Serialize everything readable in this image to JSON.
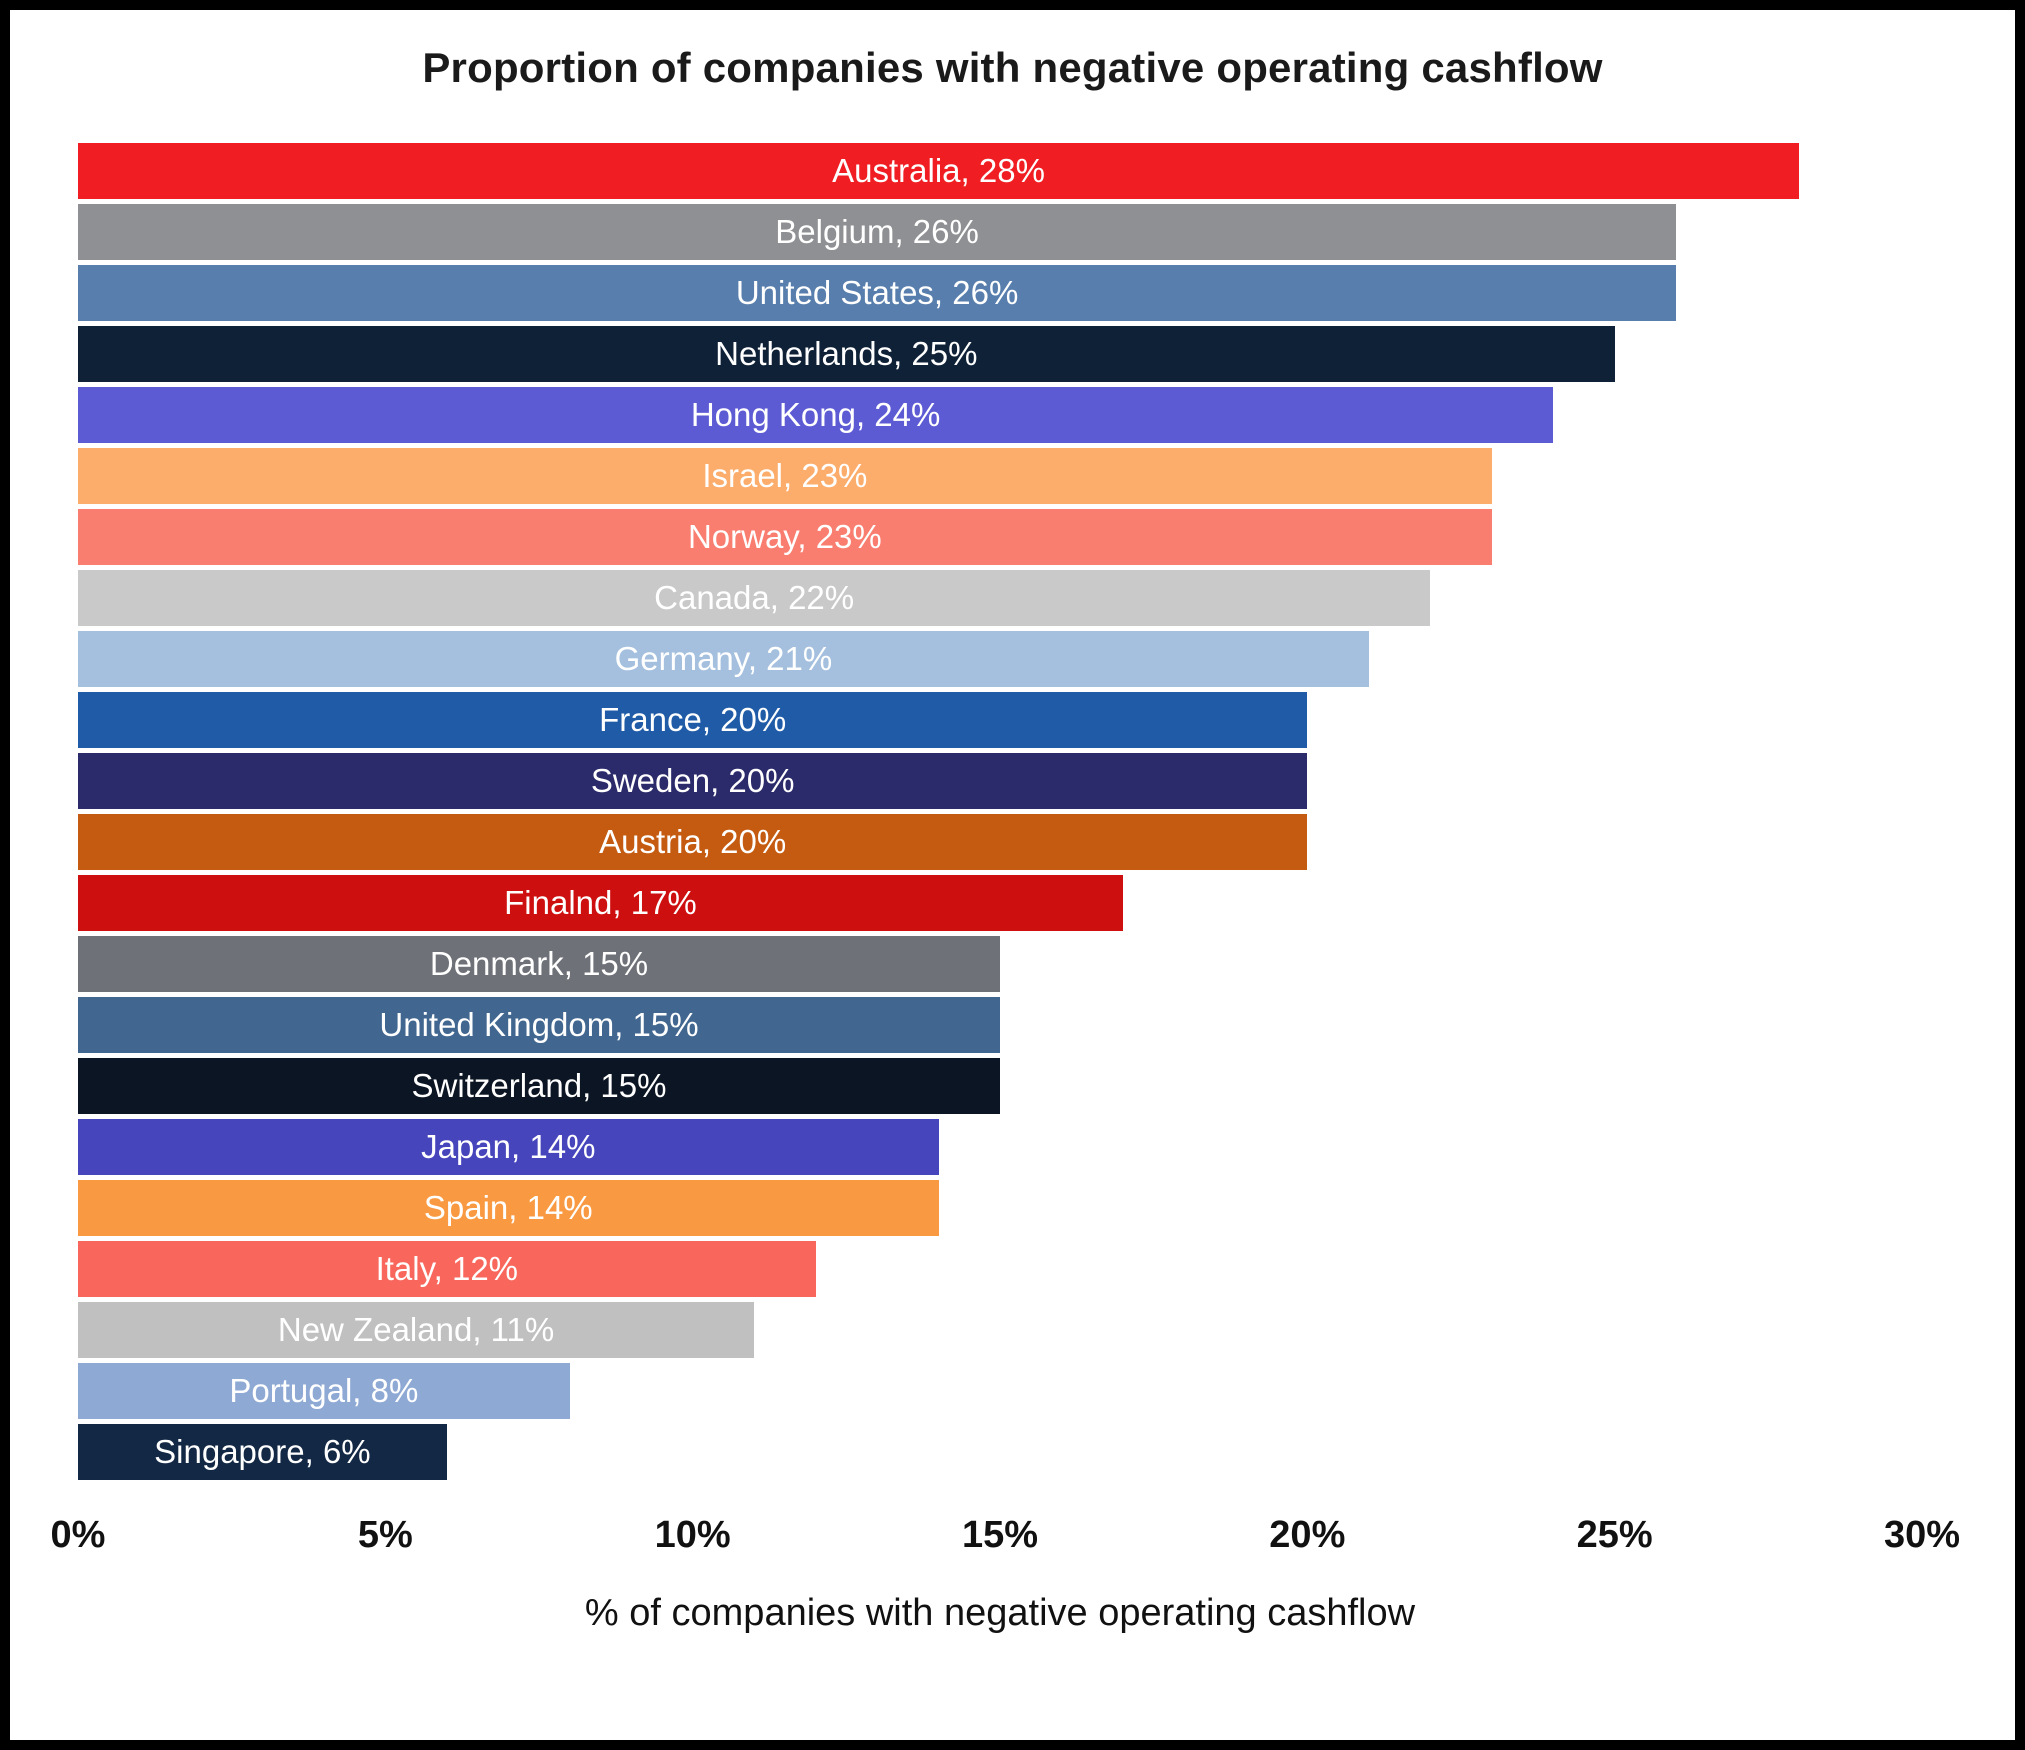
{
  "chart_data": {
    "type": "bar",
    "orientation": "horizontal",
    "title": "Proportion of companies with negative operating cashflow",
    "xlabel": "% of companies with negative operating cashflow",
    "xlim": [
      0,
      30
    ],
    "x_ticks": [
      "0%",
      "5%",
      "10%",
      "15%",
      "20%",
      "25%",
      "30%"
    ],
    "grid": false,
    "legend": false,
    "label_color": "#FFFFFF",
    "label_format": "{category}, {value}%",
    "categories": [
      "Australia",
      "Belgium",
      "United States",
      "Netherlands",
      "Hong Kong",
      "Israel",
      "Norway",
      "Canada",
      "Germany",
      "France",
      "Sweden",
      "Austria",
      "Finalnd",
      "Denmark",
      "United Kingdom",
      "Switzerland",
      "Japan",
      "Spain",
      "Italy",
      "New Zealand",
      "Portugal",
      "Singapore"
    ],
    "values": [
      28,
      26,
      26,
      25,
      24,
      23,
      23,
      22,
      21,
      20,
      20,
      20,
      17,
      15,
      15,
      15,
      14,
      14,
      12,
      11,
      8,
      6
    ],
    "bar_colors": [
      "#F01E23",
      "#8F9093",
      "#577EAC",
      "#0F2137",
      "#5D5BD4",
      "#FCAC6B",
      "#F97E6F",
      "#C9C9C9",
      "#A5C0DE",
      "#1F5BA6",
      "#2B2A6A",
      "#C55A11",
      "#CE0F0F",
      "#6E7177",
      "#41668F",
      "#0C1523",
      "#4645BC",
      "#F99A42",
      "#F8665C",
      "#C0C0C0",
      "#8EA9D4",
      "#132844"
    ]
  }
}
